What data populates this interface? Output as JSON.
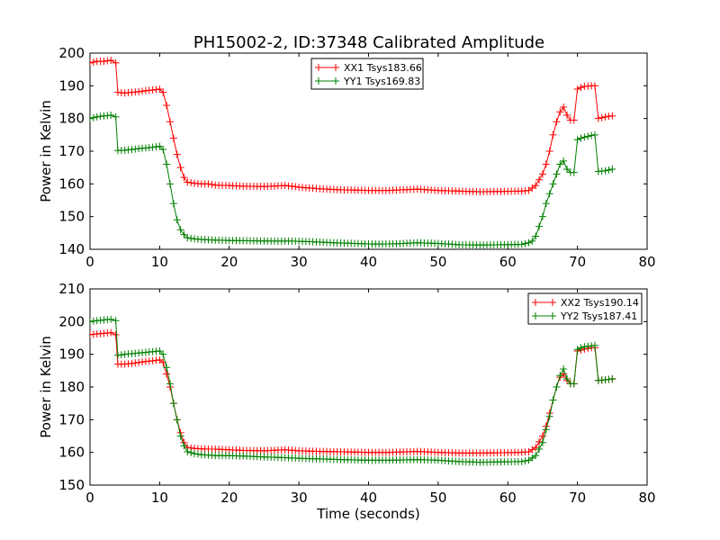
{
  "title": "PH15002-2, ID:37348 Calibrated Amplitude",
  "chart_data": [
    {
      "type": "line",
      "title": "PH15002-2, ID:37348 Calibrated Amplitude",
      "xlabel": "",
      "ylabel": "Power in Kelvin",
      "xlim": [
        0,
        80
      ],
      "ylim": [
        140,
        200
      ],
      "xticks": [
        0,
        10,
        20,
        30,
        40,
        50,
        60,
        70,
        80
      ],
      "yticks": [
        140,
        150,
        160,
        170,
        180,
        190,
        200
      ],
      "grid": false,
      "legend_position": "top-center",
      "marker": "+",
      "series": [
        {
          "name": "XX1 Tsys183.66",
          "color": "#ff0000",
          "points": [
            [
              0,
              197
            ],
            [
              1,
              197.5
            ],
            [
              2,
              197.5
            ],
            [
              3,
              197.8
            ],
            [
              3.7,
              197
            ],
            [
              4,
              188
            ],
            [
              5,
              187.8
            ],
            [
              6,
              188
            ],
            [
              7,
              188.2
            ],
            [
              8,
              188.5
            ],
            [
              9,
              188.7
            ],
            [
              10,
              189
            ],
            [
              10.5,
              188
            ],
            [
              11,
              184
            ],
            [
              11.5,
              179
            ],
            [
              12,
              174
            ],
            [
              12.5,
              169
            ],
            [
              13,
              165
            ],
            [
              13.5,
              162
            ],
            [
              14,
              160.5
            ],
            [
              15,
              160.2
            ],
            [
              16,
              160
            ],
            [
              17,
              160
            ],
            [
              18,
              159.6
            ],
            [
              20,
              159.5
            ],
            [
              22,
              159.3
            ],
            [
              25,
              159.2
            ],
            [
              28,
              159.5
            ],
            [
              30,
              159
            ],
            [
              33,
              158.5
            ],
            [
              36,
              158.2
            ],
            [
              40,
              158
            ],
            [
              43,
              158
            ],
            [
              47,
              158.4
            ],
            [
              50,
              158
            ],
            [
              53,
              157.8
            ],
            [
              56,
              157.6
            ],
            [
              59,
              157.7
            ],
            [
              62,
              157.8
            ],
            [
              63,
              158
            ],
            [
              64,
              159.5
            ],
            [
              65,
              163
            ],
            [
              65.5,
              166
            ],
            [
              66,
              170
            ],
            [
              66.5,
              175
            ],
            [
              67,
              179
            ],
            [
              67.5,
              182
            ],
            [
              68,
              183.5
            ],
            [
              68.5,
              181
            ],
            [
              69,
              179.5
            ],
            [
              69.5,
              179.5
            ],
            [
              70,
              189
            ],
            [
              70.5,
              189.5
            ],
            [
              71,
              189.8
            ],
            [
              72,
              190
            ],
            [
              72.5,
              190
            ],
            [
              73,
              180
            ],
            [
              74,
              180.5
            ],
            [
              75,
              180.8
            ]
          ]
        },
        {
          "name": "YY1 Tsys169.83",
          "color": "#008000",
          "points": [
            [
              0,
              180
            ],
            [
              1,
              180.5
            ],
            [
              2,
              180.8
            ],
            [
              3,
              181
            ],
            [
              3.7,
              180.5
            ],
            [
              4,
              170.2
            ],
            [
              5,
              170.3
            ],
            [
              6,
              170.5
            ],
            [
              7,
              170.8
            ],
            [
              8,
              171
            ],
            [
              9,
              171.2
            ],
            [
              10,
              171.5
            ],
            [
              10.5,
              170.5
            ],
            [
              11,
              166
            ],
            [
              11.5,
              160
            ],
            [
              12,
              154
            ],
            [
              12.5,
              149
            ],
            [
              13,
              146
            ],
            [
              13.5,
              144.5
            ],
            [
              14,
              143.5
            ],
            [
              15,
              143.2
            ],
            [
              16,
              143
            ],
            [
              18,
              142.8
            ],
            [
              20,
              142.7
            ],
            [
              23,
              142.6
            ],
            [
              26,
              142.5
            ],
            [
              29,
              142.5
            ],
            [
              32,
              142.3
            ],
            [
              35,
              142
            ],
            [
              38,
              141.8
            ],
            [
              41,
              141.6
            ],
            [
              44,
              141.7
            ],
            [
              47,
              142
            ],
            [
              50,
              141.8
            ],
            [
              53,
              141.4
            ],
            [
              56,
              141.3
            ],
            [
              59,
              141.4
            ],
            [
              62,
              141.5
            ],
            [
              63,
              142
            ],
            [
              63.5,
              142.5
            ],
            [
              64,
              144
            ],
            [
              64.5,
              147
            ],
            [
              65,
              150
            ],
            [
              65.5,
              154
            ],
            [
              66,
              157
            ],
            [
              66.5,
              160
            ],
            [
              67,
              163
            ],
            [
              67.5,
              166
            ],
            [
              68,
              167
            ],
            [
              68.5,
              164.5
            ],
            [
              69,
              163.5
            ],
            [
              69.5,
              163.5
            ],
            [
              70,
              173.5
            ],
            [
              70.5,
              174
            ],
            [
              71,
              174.3
            ],
            [
              72,
              174.8
            ],
            [
              72.5,
              175
            ],
            [
              73,
              163.8
            ],
            [
              74,
              164
            ],
            [
              75,
              164.5
            ]
          ]
        }
      ]
    },
    {
      "type": "line",
      "title": "",
      "xlabel": "Time (seconds)",
      "ylabel": "Power in Kelvin",
      "xlim": [
        0,
        80
      ],
      "ylim": [
        150,
        210
      ],
      "xticks": [
        0,
        10,
        20,
        30,
        40,
        50,
        60,
        70,
        80
      ],
      "yticks": [
        150,
        160,
        170,
        180,
        190,
        200,
        210
      ],
      "grid": false,
      "legend_position": "top-right",
      "marker": "+",
      "series": [
        {
          "name": "XX2 Tsys190.14",
          "color": "#ff0000",
          "points": [
            [
              0,
              196
            ],
            [
              1,
              196.2
            ],
            [
              2,
              196.4
            ],
            [
              3,
              196.6
            ],
            [
              3.7,
              196
            ],
            [
              4,
              187
            ],
            [
              5,
              187
            ],
            [
              6,
              187.2
            ],
            [
              7,
              187.5
            ],
            [
              8,
              187.8
            ],
            [
              9,
              188
            ],
            [
              10,
              188.3
            ],
            [
              10.5,
              187.5
            ],
            [
              11,
              184
            ],
            [
              11.5,
              180
            ],
            [
              12,
              175
            ],
            [
              12.5,
              170
            ],
            [
              13,
              166
            ],
            [
              13.5,
              163
            ],
            [
              14,
              161.5
            ],
            [
              15,
              161.2
            ],
            [
              16,
              161.1
            ],
            [
              17,
              161
            ],
            [
              18,
              161
            ],
            [
              20,
              160.8
            ],
            [
              22,
              160.6
            ],
            [
              25,
              160.5
            ],
            [
              28,
              160.8
            ],
            [
              30,
              160.5
            ],
            [
              33,
              160.3
            ],
            [
              36,
              160.2
            ],
            [
              40,
              160
            ],
            [
              43,
              160
            ],
            [
              47,
              160.3
            ],
            [
              50,
              160
            ],
            [
              53,
              159.8
            ],
            [
              56,
              159.8
            ],
            [
              59,
              159.9
            ],
            [
              62,
              160
            ],
            [
              63,
              160.2
            ],
            [
              64,
              161.5
            ],
            [
              65,
              165
            ],
            [
              65.5,
              168
            ],
            [
              66,
              172
            ],
            [
              66.5,
              176
            ],
            [
              67,
              180
            ],
            [
              67.5,
              183
            ],
            [
              68,
              184
            ],
            [
              68.5,
              182
            ],
            [
              69,
              181
            ],
            [
              69.5,
              181
            ],
            [
              70,
              191
            ],
            [
              70.5,
              191.3
            ],
            [
              71,
              191.6
            ],
            [
              72,
              192
            ],
            [
              72.5,
              192
            ],
            [
              73,
              182
            ],
            [
              74,
              182.2
            ],
            [
              75,
              182.4
            ]
          ]
        },
        {
          "name": "YY2 Tsys187.41",
          "color": "#008000",
          "points": [
            [
              0,
              200
            ],
            [
              1,
              200.3
            ],
            [
              2,
              200.5
            ],
            [
              3,
              200.7
            ],
            [
              3.7,
              200.3
            ],
            [
              4,
              189.7
            ],
            [
              5,
              190
            ],
            [
              6,
              190.2
            ],
            [
              7,
              190.4
            ],
            [
              8,
              190.6
            ],
            [
              9,
              190.8
            ],
            [
              10,
              191
            ],
            [
              10.5,
              190
            ],
            [
              11,
              186
            ],
            [
              11.5,
              181
            ],
            [
              12,
              175
            ],
            [
              12.5,
              170
            ],
            [
              13,
              165
            ],
            [
              13.5,
              162
            ],
            [
              14,
              160.2
            ],
            [
              15,
              159.6
            ],
            [
              16,
              159.3
            ],
            [
              17,
              159.2
            ],
            [
              18,
              159
            ],
            [
              20,
              159
            ],
            [
              22,
              158.9
            ],
            [
              25,
              158.6
            ],
            [
              28,
              158.4
            ],
            [
              30,
              158.2
            ],
            [
              33,
              158
            ],
            [
              36,
              157.8
            ],
            [
              40,
              157.6
            ],
            [
              43,
              157.6
            ],
            [
              47,
              157.8
            ],
            [
              50,
              157.6
            ],
            [
              53,
              157.2
            ],
            [
              56,
              157
            ],
            [
              59,
              157.1
            ],
            [
              62,
              157.2
            ],
            [
              63,
              157.6
            ],
            [
              64,
              159
            ],
            [
              65,
              163
            ],
            [
              65.5,
              167
            ],
            [
              66,
              171
            ],
            [
              66.5,
              176
            ],
            [
              67,
              180
            ],
            [
              67.5,
              183.5
            ],
            [
              68,
              185.5
            ],
            [
              68.5,
              182.5
            ],
            [
              69,
              181
            ],
            [
              69.5,
              181
            ],
            [
              70,
              191.5
            ],
            [
              70.5,
              192
            ],
            [
              71,
              192.3
            ],
            [
              72,
              192.6
            ],
            [
              72.5,
              192.7
            ],
            [
              73,
              182
            ],
            [
              74,
              182.2
            ],
            [
              75,
              182.5
            ]
          ]
        }
      ]
    }
  ]
}
